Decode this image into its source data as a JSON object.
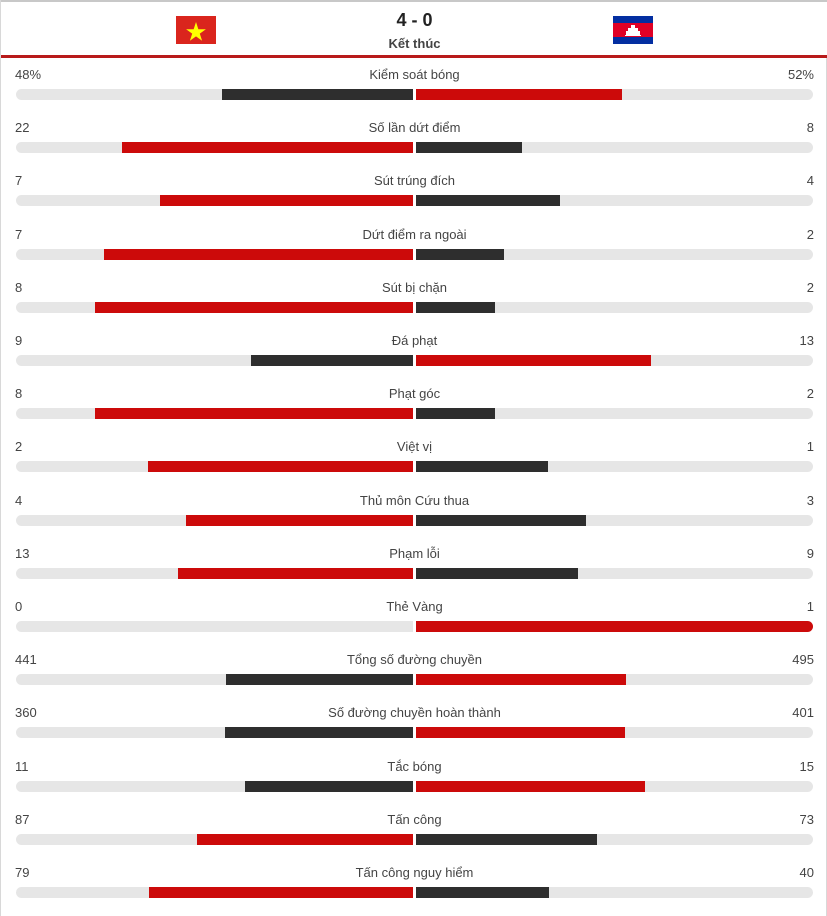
{
  "header": {
    "score": "4 - 0",
    "status": "Kết thúc",
    "home_flag": "vietnam-flag",
    "away_flag": "cambodia-flag"
  },
  "colors": {
    "leader": "#cc0a0a",
    "trailer": "#2e2e2e",
    "track": "#e6e6e6",
    "accent_line": "#b81a1a"
  },
  "stats": [
    {
      "label": "Kiểm soát bóng",
      "home": "48%",
      "away": "52%",
      "home_value": 48,
      "away_value": 52
    },
    {
      "label": "Số lần dứt điểm",
      "home": "22",
      "away": "8",
      "home_value": 22,
      "away_value": 8
    },
    {
      "label": "Sút trúng đích",
      "home": "7",
      "away": "4",
      "home_value": 7,
      "away_value": 4
    },
    {
      "label": "Dứt điểm ra ngoài",
      "home": "7",
      "away": "2",
      "home_value": 7,
      "away_value": 2
    },
    {
      "label": "Sút bị chặn",
      "home": "8",
      "away": "2",
      "home_value": 8,
      "away_value": 2
    },
    {
      "label": "Đá phạt",
      "home": "9",
      "away": "13",
      "home_value": 9,
      "away_value": 13
    },
    {
      "label": "Phạt góc",
      "home": "8",
      "away": "2",
      "home_value": 8,
      "away_value": 2
    },
    {
      "label": "Việt vị",
      "home": "2",
      "away": "1",
      "home_value": 2,
      "away_value": 1
    },
    {
      "label": "Thủ môn Cứu thua",
      "home": "4",
      "away": "3",
      "home_value": 4,
      "away_value": 3
    },
    {
      "label": "Phạm lỗi",
      "home": "13",
      "away": "9",
      "home_value": 13,
      "away_value": 9
    },
    {
      "label": "Thẻ Vàng",
      "home": "0",
      "away": "1",
      "home_value": 0,
      "away_value": 1
    },
    {
      "label": "Tổng số đường chuyền",
      "home": "441",
      "away": "495",
      "home_value": 441,
      "away_value": 495
    },
    {
      "label": "Số đường chuyền hoàn thành",
      "home": "360",
      "away": "401",
      "home_value": 360,
      "away_value": 401
    },
    {
      "label": "Tắc bóng",
      "home": "11",
      "away": "15",
      "home_value": 11,
      "away_value": 15
    },
    {
      "label": "Tấn công",
      "home": "87",
      "away": "73",
      "home_value": 87,
      "away_value": 73
    },
    {
      "label": "Tấn công nguy hiểm",
      "home": "79",
      "away": "40",
      "home_value": 79,
      "away_value": 40
    }
  ]
}
